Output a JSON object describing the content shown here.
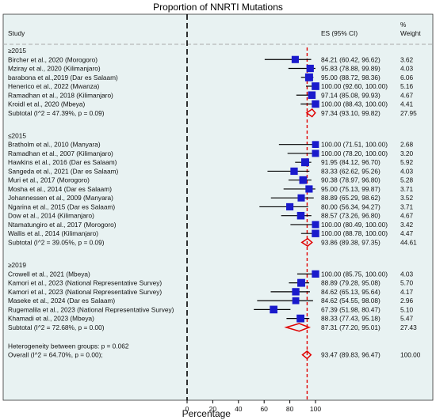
{
  "chart_data": {
    "type": "forest",
    "title": "Proportion of NNRTI Mutations",
    "xlabel": "Percentage",
    "xlim": [
      0,
      100
    ],
    "xticks": [
      0,
      20,
      40,
      60,
      80,
      100
    ],
    "xtick_labels": [
      "0",
      "20",
      "40",
      "60",
      "80",
      "100"
    ],
    "reference_line_x": 0,
    "overall_line_x": 93.47,
    "header": {
      "study": "Study",
      "es": "ES (95% CI)",
      "weight_line1": "%",
      "weight_line2": "Weight"
    },
    "colors": {
      "background": "#e8f2f2",
      "marker": "#1a1acc",
      "diamond": "#e00000",
      "overall_line": "#e00000"
    },
    "groups": [
      {
        "label": "≥2015",
        "studies": [
          {
            "name": "Bircher et al., 2020 (Morogoro)",
            "es": 84.21,
            "lo": 60.42,
            "hi": 96.62,
            "es_text": "84.21 (60.42, 96.62)",
            "weight": "3.62"
          },
          {
            "name": "Mziray et al., 2020 (Kilimanjaro)",
            "es": 95.83,
            "lo": 78.88,
            "hi": 99.89,
            "es_text": "95.83 (78.88, 99.89)",
            "weight": "4.03"
          },
          {
            "name": "barabona et al.,2019 (Dar es Salaam)",
            "es": 95.0,
            "lo": 88.72,
            "hi": 98.36,
            "es_text": "95.00 (88.72, 98.36)",
            "weight": "6.06"
          },
          {
            "name": "Henerico et al., 2022 (Mwanza)",
            "es": 100.0,
            "lo": 92.6,
            "hi": 100.0,
            "es_text": "100.00 (92.60, 100.00)",
            "weight": "5.16"
          },
          {
            "name": "Ramadhan et al., 2018 (Kilimanjaro)",
            "es": 97.14,
            "lo": 85.08,
            "hi": 99.93,
            "es_text": "97.14 (85.08, 99.93)",
            "weight": "4.67"
          },
          {
            "name": "Kroidl et al., 2020 (Mbeya)",
            "es": 100.0,
            "lo": 88.43,
            "hi": 100.0,
            "es_text": "100.00 (88.43, 100.00)",
            "weight": "4.41"
          }
        ],
        "subtotal": {
          "label": "Subtotal  (I^2 = 47.39%, p = 0.09)",
          "es": 97.34,
          "lo": 93.1,
          "hi": 99.82,
          "es_text": "97.34 (93.10, 99.82)",
          "weight": "27.95"
        }
      },
      {
        "label": "≤2015",
        "studies": [
          {
            "name": "Bratholm et al., 2010 (Manyara)",
            "es": 100.0,
            "lo": 71.51,
            "hi": 100.0,
            "es_text": "100.00 (71.51, 100.00)",
            "weight": "2.68"
          },
          {
            "name": "Ramadhan et al., 2007 (Kilimanjaro)",
            "es": 100.0,
            "lo": 78.2,
            "hi": 100.0,
            "es_text": "100.00 (78.20, 100.00)",
            "weight": "3.20"
          },
          {
            "name": "Hawkins et al., 2016 (Dar es Salaam)",
            "es": 91.95,
            "lo": 84.12,
            "hi": 96.7,
            "es_text": "91.95 (84.12, 96.70)",
            "weight": "5.92"
          },
          {
            "name": "Sangeda et al., 2021 (Dar es Salaam)",
            "es": 83.33,
            "lo": 62.62,
            "hi": 95.26,
            "es_text": "83.33 (62.62, 95.26)",
            "weight": "4.03"
          },
          {
            "name": "Muri et al., 2017  (Morogoro)",
            "es": 90.38,
            "lo": 78.97,
            "hi": 96.8,
            "es_text": "90.38 (78.97, 96.80)",
            "weight": "5.28"
          },
          {
            "name": "Mosha et al., 2014 (Dar es Salaam)",
            "es": 95.0,
            "lo": 75.13,
            "hi": 99.87,
            "es_text": "95.00 (75.13, 99.87)",
            "weight": "3.71"
          },
          {
            "name": "Johannessen et al., 2009  (Manyara)",
            "es": 88.89,
            "lo": 65.29,
            "hi": 98.62,
            "es_text": "88.89 (65.29, 98.62)",
            "weight": "3.52"
          },
          {
            "name": "Ngarina et al., 2015 (Dar es Salaam)",
            "es": 80.0,
            "lo": 56.34,
            "hi": 94.27,
            "es_text": "80.00 (56.34, 94.27)",
            "weight": "3.71"
          },
          {
            "name": "Dow et al., 2014 (Kilimanjaro)",
            "es": 88.57,
            "lo": 73.26,
            "hi": 96.8,
            "es_text": "88.57 (73.26, 96.80)",
            "weight": "4.67"
          },
          {
            "name": "Ntamatungiro et al., 2017  (Morogoro)",
            "es": 100.0,
            "lo": 80.49,
            "hi": 100.0,
            "es_text": "100.00 (80.49, 100.00)",
            "weight": "3.42"
          },
          {
            "name": "Wallis et al., 2014 (Kilimanjaro)",
            "es": 100.0,
            "lo": 88.78,
            "hi": 100.0,
            "es_text": "100.00 (88.78, 100.00)",
            "weight": "4.47"
          }
        ],
        "subtotal": {
          "label": "Subtotal  (I^2 = 39.05%, p = 0.09)",
          "es": 93.86,
          "lo": 89.38,
          "hi": 97.35,
          "es_text": "93.86 (89.38, 97.35)",
          "weight": "44.61"
        }
      },
      {
        "label": "≥2019",
        "studies": [
          {
            "name": "Crowell et al., 2021 (Mbeya)",
            "es": 100.0,
            "lo": 85.75,
            "hi": 100.0,
            "es_text": "100.00 (85.75, 100.00)",
            "weight": "4.03"
          },
          {
            "name": "Kamori et al., 2023 (National Representative Survey)",
            "es": 88.89,
            "lo": 79.28,
            "hi": 95.08,
            "es_text": "88.89 (79.28, 95.08)",
            "weight": "5.70"
          },
          {
            "name": "Kamori et al., 2023 (National Representative Survey)",
            "es": 84.62,
            "lo": 65.13,
            "hi": 95.64,
            "es_text": "84.62 (65.13, 95.64)",
            "weight": "4.17"
          },
          {
            "name": "Maseke et al., 2024 (Dar es Salaam)",
            "es": 84.62,
            "lo": 54.55,
            "hi": 98.08,
            "es_text": "84.62 (54.55, 98.08)",
            "weight": "2.96"
          },
          {
            "name": "Rugemalila et al., 2023 (National Representative Survey)",
            "es": 67.39,
            "lo": 51.98,
            "hi": 80.47,
            "es_text": "67.39 (51.98, 80.47)",
            "weight": "5.10"
          },
          {
            "name": "Khamadi et al., 2023 (Mbeya)",
            "es": 88.33,
            "lo": 77.43,
            "hi": 95.18,
            "es_text": "88.33 (77.43, 95.18)",
            "weight": "5.47"
          }
        ],
        "subtotal": {
          "label": "Subtotal  (I^2 = 72.68%, p = 0.00)",
          "es": 87.31,
          "lo": 77.2,
          "hi": 95.01,
          "es_text": "87.31 (77.20, 95.01)",
          "weight": "27.43"
        }
      }
    ],
    "heterogeneity": "Heterogeneity between groups: p = 0.062",
    "overall": {
      "label": "Overall  (I^2 = 64.70%, p = 0.00);",
      "es": 93.47,
      "lo": 89.83,
      "hi": 96.47,
      "es_text": "93.47 (89.83, 96.47)",
      "weight": "100.00"
    }
  }
}
